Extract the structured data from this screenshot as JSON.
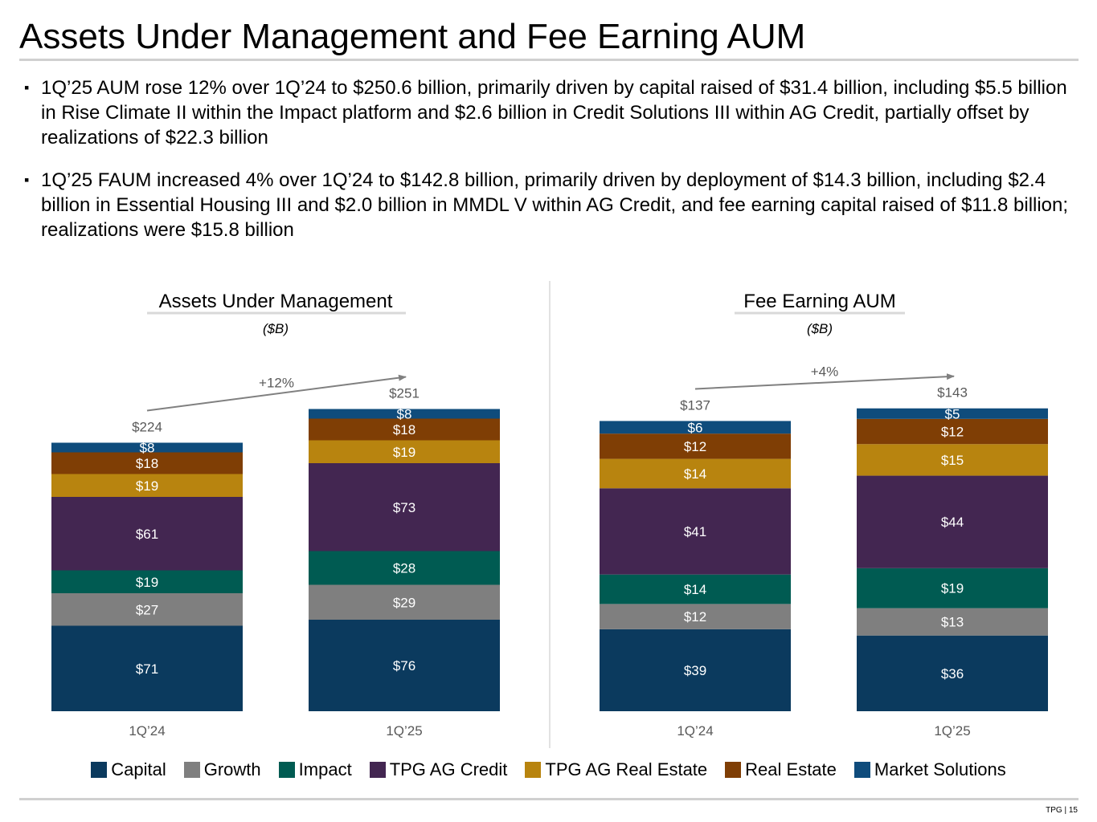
{
  "title": "Assets Under Management and Fee Earning AUM",
  "bullets": [
    "1Q’25 AUM rose 12% over 1Q’24 to $250.6 billion, primarily driven by capital raised of $31.4 billion, including $5.5 billion in Rise Climate II within the Impact platform and $2.6 billion in Credit Solutions III within AG Credit, partially offset by realizations of $22.3 billion",
    "1Q’25 FAUM increased 4% over 1Q’24 to $142.8 billion, primarily driven by deployment of $14.3 billion, including $2.4 billion in Essential Housing III and $2.0 billion in MMDL V within AG Credit, and fee earning capital raised of $11.8 billion; realizations were $15.8 billion"
  ],
  "bullet_marker": "▪",
  "colors": {
    "Capital": "#0b3a5e",
    "Growth": "#7f7f7f",
    "Impact": "#005b52",
    "TPG AG Credit": "#432651",
    "TPG AG Real Estate": "#b8840f",
    "Real Estate": "#7f3e05",
    "Market Solutions": "#0f4c7c",
    "label": "#ffffff",
    "total": "#595959",
    "arrow": "#808080",
    "divider": "#d9d9d9"
  },
  "chart_data": [
    {
      "type": "bar",
      "stacked": true,
      "title": "Assets Under Management",
      "subtitle": "($B)",
      "categories": [
        "1Q’24",
        "1Q’25"
      ],
      "series": [
        {
          "name": "Capital",
          "values": [
            71,
            76
          ]
        },
        {
          "name": "Growth",
          "values": [
            27,
            29
          ]
        },
        {
          "name": "Impact",
          "values": [
            19,
            28
          ]
        },
        {
          "name": "TPG AG Credit",
          "values": [
            61,
            73
          ]
        },
        {
          "name": "TPG AG Real Estate",
          "values": [
            19,
            19
          ]
        },
        {
          "name": "Real Estate",
          "values": [
            18,
            18
          ]
        },
        {
          "name": "Market Solutions",
          "values": [
            8,
            8
          ]
        }
      ],
      "value_labels": [
        [
          "$71",
          "$27",
          "$19",
          "$61",
          "$19",
          "$18",
          "$8"
        ],
        [
          "$76",
          "$29",
          "$28",
          "$73",
          "$19",
          "$18",
          "$8"
        ]
      ],
      "totals": [
        224,
        251
      ],
      "total_labels": [
        "$224",
        "$251"
      ],
      "growth_label": "+12%",
      "ylim": [
        0,
        270
      ]
    },
    {
      "type": "bar",
      "stacked": true,
      "title": "Fee Earning AUM",
      "subtitle": "($B)",
      "categories": [
        "1Q’24",
        "1Q’25"
      ],
      "series": [
        {
          "name": "Capital",
          "values": [
            39,
            36
          ]
        },
        {
          "name": "Growth",
          "values": [
            12,
            13
          ]
        },
        {
          "name": "Impact",
          "values": [
            14,
            19
          ]
        },
        {
          "name": "TPG AG Credit",
          "values": [
            41,
            44
          ]
        },
        {
          "name": "TPG AG Real Estate",
          "values": [
            14,
            15
          ]
        },
        {
          "name": "Real Estate",
          "values": [
            12,
            12
          ]
        },
        {
          "name": "Market Solutions",
          "values": [
            6,
            5
          ]
        }
      ],
      "value_labels": [
        [
          "$39",
          "$12",
          "$14",
          "$41",
          "$14",
          "$12",
          "$6"
        ],
        [
          "$36",
          "$13",
          "$19",
          "$44",
          "$15",
          "$12",
          "$5"
        ]
      ],
      "totals": [
        137,
        143
      ],
      "total_labels": [
        "$137",
        "$143"
      ],
      "growth_label": "+4%",
      "ylim": [
        0,
        155
      ]
    }
  ],
  "legend": [
    "Capital",
    "Growth",
    "Impact",
    "TPG AG Credit",
    "TPG AG Real Estate",
    "Real Estate",
    "Market Solutions"
  ],
  "footer": "TPG | 15"
}
